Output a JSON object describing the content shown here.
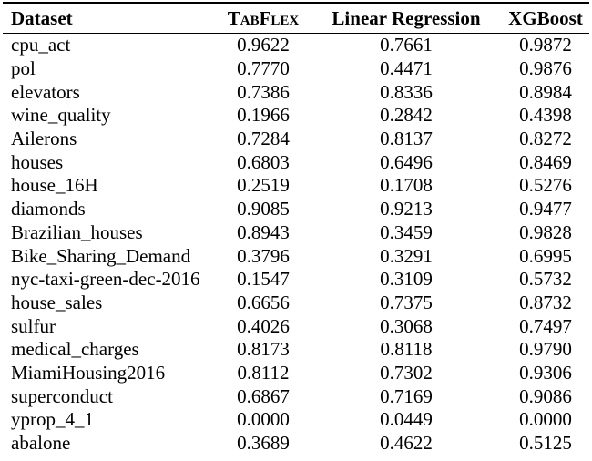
{
  "table": {
    "columns": [
      {
        "label": "Dataset"
      },
      {
        "label": "TabFlex",
        "style": "small-caps"
      },
      {
        "label": "Linear Regression"
      },
      {
        "label": "XGBoost"
      }
    ],
    "rows": [
      {
        "dataset": "cpu_act",
        "tabflex": "0.9622",
        "linreg": "0.7661",
        "xgboost": "0.9872"
      },
      {
        "dataset": "pol",
        "tabflex": "0.7770",
        "linreg": "0.4471",
        "xgboost": "0.9876"
      },
      {
        "dataset": "elevators",
        "tabflex": "0.7386",
        "linreg": "0.8336",
        "xgboost": "0.8984"
      },
      {
        "dataset": "wine_quality",
        "tabflex": "0.1966",
        "linreg": "0.2842",
        "xgboost": "0.4398"
      },
      {
        "dataset": "Ailerons",
        "tabflex": "0.7284",
        "linreg": "0.8137",
        "xgboost": "0.8272"
      },
      {
        "dataset": "houses",
        "tabflex": "0.6803",
        "linreg": "0.6496",
        "xgboost": "0.8469"
      },
      {
        "dataset": "house_16H",
        "tabflex": "0.2519",
        "linreg": "0.1708",
        "xgboost": "0.5276"
      },
      {
        "dataset": "diamonds",
        "tabflex": "0.9085",
        "linreg": "0.9213",
        "xgboost": "0.9477"
      },
      {
        "dataset": "Brazilian_houses",
        "tabflex": "0.8943",
        "linreg": "0.3459",
        "xgboost": "0.9828"
      },
      {
        "dataset": "Bike_Sharing_Demand",
        "tabflex": "0.3796",
        "linreg": "0.3291",
        "xgboost": "0.6995"
      },
      {
        "dataset": "nyc-taxi-green-dec-2016",
        "tabflex": "0.1547",
        "linreg": "0.3109",
        "xgboost": "0.5732"
      },
      {
        "dataset": "house_sales",
        "tabflex": "0.6656",
        "linreg": "0.7375",
        "xgboost": "0.8732"
      },
      {
        "dataset": "sulfur",
        "tabflex": "0.4026",
        "linreg": "0.3068",
        "xgboost": "0.7497"
      },
      {
        "dataset": "medical_charges",
        "tabflex": "0.8173",
        "linreg": "0.8118",
        "xgboost": "0.9790"
      },
      {
        "dataset": "MiamiHousing2016",
        "tabflex": "0.8112",
        "linreg": "0.7302",
        "xgboost": "0.9306"
      },
      {
        "dataset": "superconduct",
        "tabflex": "0.6867",
        "linreg": "0.7169",
        "xgboost": "0.9086"
      },
      {
        "dataset": "yprop_4_1",
        "tabflex": "0.0000",
        "linreg": "0.0449",
        "xgboost": "0.0000"
      },
      {
        "dataset": "abalone",
        "tabflex": "0.3689",
        "linreg": "0.4622",
        "xgboost": "0.5125"
      }
    ]
  },
  "colors": {
    "text": "#000000",
    "background": "#ffffff",
    "rule": "#000000"
  }
}
